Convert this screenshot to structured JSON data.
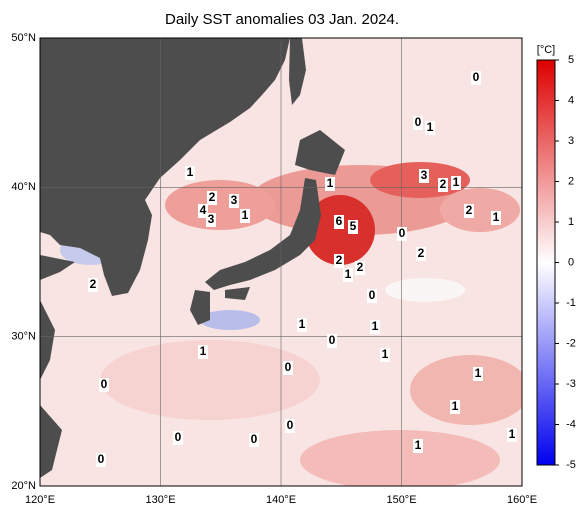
{
  "title": "Daily SST anomalies 03 Jan. 2024.",
  "map": {
    "lon_ticks": [
      {
        "value": 120,
        "label": "120°E"
      },
      {
        "value": 130,
        "label": "130°E"
      },
      {
        "value": 140,
        "label": "140°E"
      },
      {
        "value": 150,
        "label": "150°E"
      },
      {
        "value": 160,
        "label": "160°E"
      }
    ],
    "lat_ticks": [
      {
        "value": 50,
        "label": "50°N"
      },
      {
        "value": 40,
        "label": "40°N"
      },
      {
        "value": 30,
        "label": "30°N"
      },
      {
        "value": 20,
        "label": "20°N"
      }
    ],
    "contour_labels": [
      "1",
      "0",
      "0",
      "1",
      "1",
      "3",
      "2",
      "1",
      "2",
      "3",
      "4",
      "3",
      "1",
      "6",
      "5",
      "2",
      "1",
      "0",
      "2",
      "2",
      "2",
      "1",
      "2",
      "0",
      "1",
      "1",
      "0",
      "1",
      "1",
      "0",
      "0",
      "1",
      "1",
      "0",
      "0",
      "0",
      "1",
      "1",
      "0"
    ]
  },
  "colorbar": {
    "unit": "[°C]",
    "ticks": [
      5,
      4,
      3,
      2,
      1,
      0,
      -1,
      -2,
      -3,
      -4,
      -5
    ],
    "colors": [
      "#0000ee",
      "#ffffff",
      "#dd0000"
    ]
  }
}
